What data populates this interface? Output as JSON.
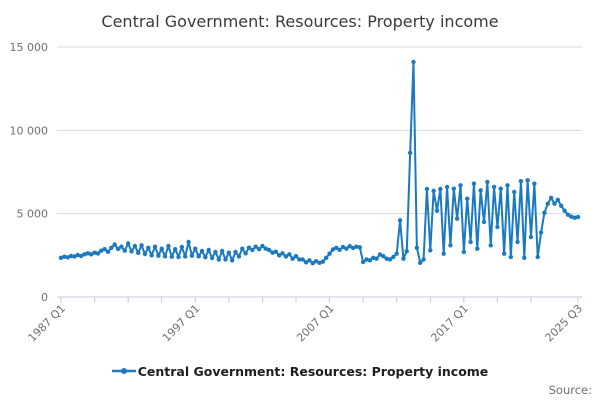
{
  "page": {
    "title": "Central Government: Resources: Property income",
    "source_label": "Source:"
  },
  "legend": {
    "label": "Central Government: Resources: Property income",
    "symbol": "line-with-dot-marker"
  },
  "colors": {
    "line": "#1b79c2",
    "grid": "#d9d9d9",
    "axis": "#c2cbdc",
    "tick_text": "#6f6f6f",
    "title_text": "#3a3a3a",
    "legend_text": "#1e1e1e",
    "source_text": "#6f6f6f",
    "background": "#ffffff"
  },
  "chart_data": {
    "type": "line",
    "title": "Central Government: Resources: Property income",
    "x_unit": "quarter",
    "x_start_label": "1987 Q1",
    "x_end_label": "2025 Q3",
    "ylim": [
      0,
      15000
    ],
    "grid": "horizontal",
    "legend_position": "bottom",
    "y_ticks": [
      {
        "value": 0,
        "label": "0"
      },
      {
        "value": 5000,
        "label": "5 000"
      },
      {
        "value": 10000,
        "label": "10 000"
      },
      {
        "value": 15000,
        "label": "15 000"
      }
    ],
    "x_major_ticks": [
      {
        "quarter_index": 0,
        "label": "1987 Q1"
      },
      {
        "quarter_index": 40,
        "label": "1997 Q1"
      },
      {
        "quarter_index": 80,
        "label": "2007 Q1"
      },
      {
        "quarter_index": 120,
        "label": "2017 Q1"
      },
      {
        "quarter_index": 154,
        "label": "2025 Q3"
      }
    ],
    "x_minor_tick_quarters": [
      10,
      20,
      30,
      50,
      60,
      70,
      90,
      100,
      110,
      130,
      140
    ],
    "series": [
      {
        "name": "Central Government: Resources: Property income",
        "start": "1987 Q1",
        "frequency": "quarterly",
        "values": [
          2350,
          2420,
          2380,
          2460,
          2430,
          2520,
          2460,
          2560,
          2620,
          2560,
          2660,
          2610,
          2780,
          2870,
          2710,
          2950,
          3150,
          2880,
          3020,
          2780,
          3210,
          2740,
          3060,
          2650,
          3100,
          2580,
          2950,
          2500,
          3020,
          2480,
          2900,
          2440,
          3060,
          2420,
          2870,
          2400,
          3000,
          2430,
          3300,
          2480,
          2900,
          2440,
          2760,
          2390,
          2820,
          2340,
          2700,
          2250,
          2760,
          2250,
          2660,
          2200,
          2700,
          2430,
          2900,
          2620,
          2960,
          2820,
          3020,
          2870,
          3060,
          2900,
          2820,
          2660,
          2720,
          2500,
          2620,
          2430,
          2560,
          2300,
          2450,
          2250,
          2250,
          2080,
          2200,
          2030,
          2150,
          2050,
          2120,
          2350,
          2600,
          2850,
          2950,
          2830,
          3000,
          2900,
          3050,
          2940,
          3020,
          2980,
          2100,
          2250,
          2200,
          2350,
          2300,
          2550,
          2450,
          2300,
          2250,
          2400,
          2600,
          4600,
          2300,
          2750,
          8650,
          14100,
          2950,
          2050,
          2250,
          6480,
          2800,
          6370,
          5180,
          6480,
          2600,
          6600,
          3100,
          6500,
          4700,
          6700,
          2700,
          5900,
          3300,
          6800,
          2900,
          6400,
          4500,
          6900,
          3100,
          6600,
          4200,
          6500,
          2600,
          6700,
          2400,
          6300,
          3300,
          6950,
          2350,
          7000,
          3600,
          6800,
          2400,
          3870,
          5060,
          5600,
          5950,
          5600,
          5830,
          5470,
          5180,
          4940,
          4820,
          4760,
          4800
        ]
      }
    ]
  }
}
